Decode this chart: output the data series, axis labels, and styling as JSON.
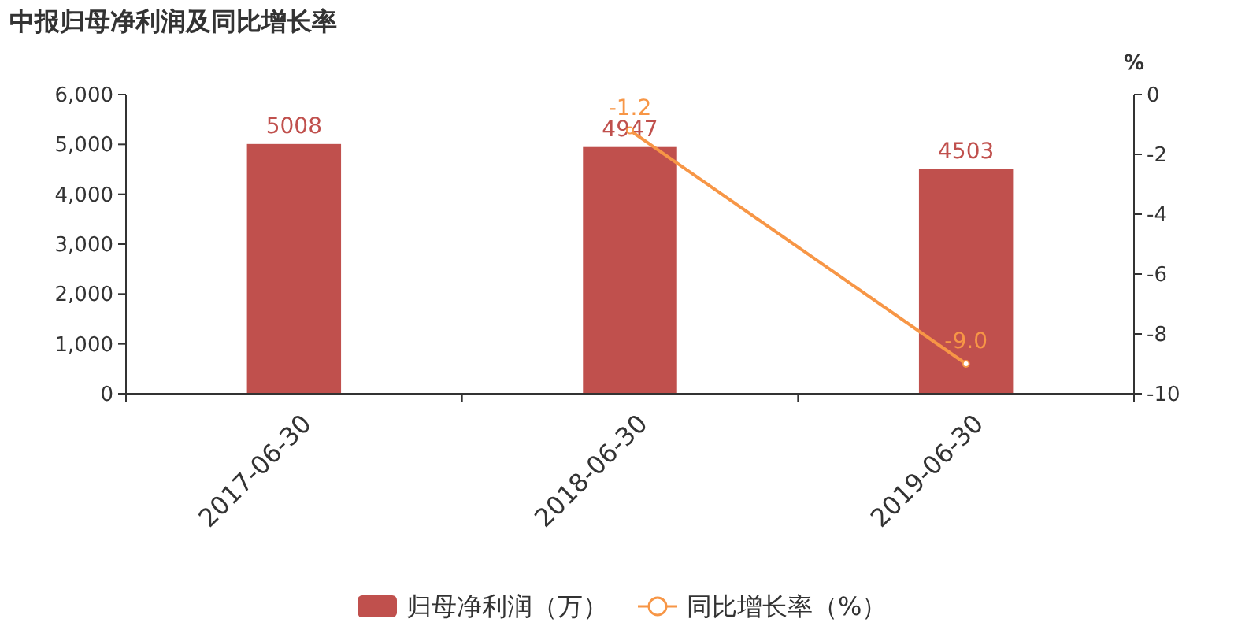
{
  "chart_data": {
    "type": "bar",
    "title": "中报归母净利润及同比增长率",
    "categories": [
      "2017-06-30",
      "2018-06-30",
      "2019-06-30"
    ],
    "series": [
      {
        "name": "归母净利润（万）",
        "color": "#c0504d",
        "values": [
          5008,
          4947,
          4503
        ]
      },
      {
        "name": "同比增长率（%）",
        "type": "line",
        "axis": "y2",
        "color": "#f79646",
        "values": [
          null,
          -1.2,
          -9.0
        ],
        "value_labels": [
          null,
          "-1.2",
          "-9.0"
        ]
      }
    ],
    "ylim": [
      0,
      6000
    ],
    "yticks": [
      {
        "value": 0,
        "label": "0"
      },
      {
        "value": 1000,
        "label": "1,000"
      },
      {
        "value": 2000,
        "label": "2,000"
      },
      {
        "value": 3000,
        "label": "3,000"
      },
      {
        "value": 4000,
        "label": "4,000"
      },
      {
        "value": 5000,
        "label": "5,000"
      },
      {
        "value": 6000,
        "label": "6,000"
      }
    ],
    "y2lim": [
      -10,
      0
    ],
    "y2ticks": [
      -10,
      -8,
      -6,
      -4,
      -2,
      0
    ],
    "y2label": "%",
    "data_labels": true,
    "legend": "bottom",
    "marker": "circle"
  }
}
